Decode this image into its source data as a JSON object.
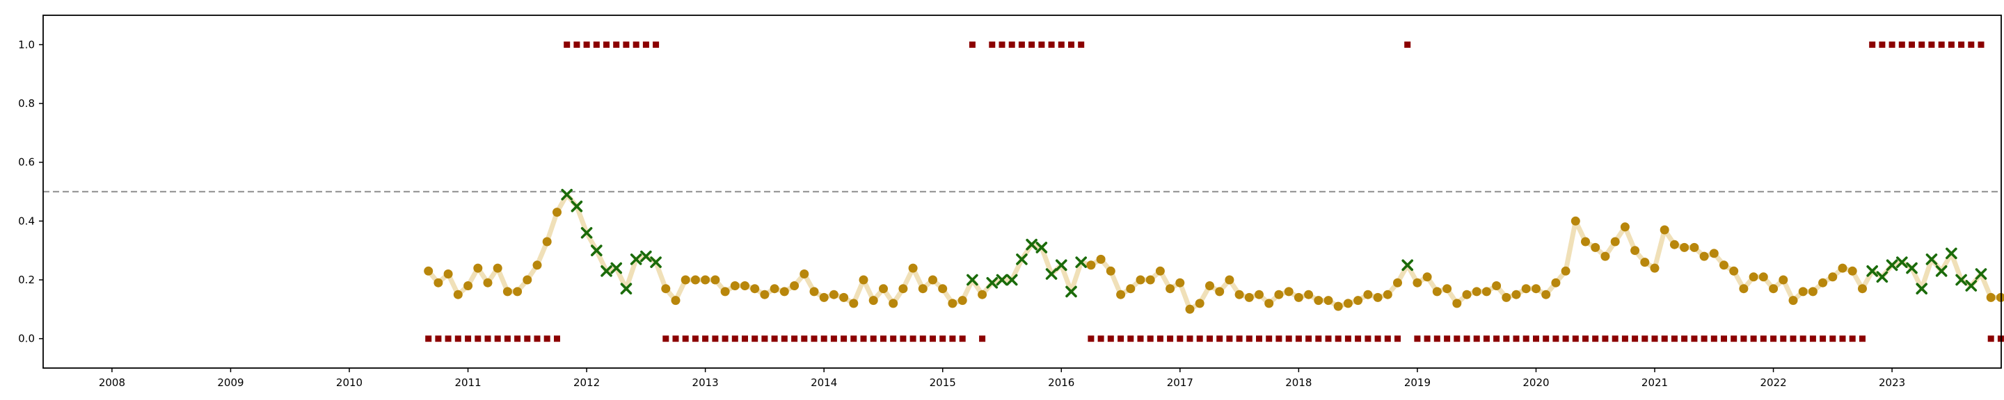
{
  "chart_data": {
    "type": "scatter",
    "title": "",
    "xlabel": "",
    "ylabel": "",
    "xlim": [
      2007.42,
      2023.92
    ],
    "ylim": [
      -0.1,
      1.1
    ],
    "x_ticks": [
      2008,
      2009,
      2010,
      2011,
      2012,
      2013,
      2014,
      2015,
      2016,
      2017,
      2018,
      2019,
      2020,
      2021,
      2022,
      2023
    ],
    "y_ticks": [
      0.0,
      0.2,
      0.4,
      0.6,
      0.8,
      1.0
    ],
    "y_tick_labels": [
      "0.0",
      "0.2",
      "0.4",
      "0.6",
      "0.8",
      "1.0"
    ],
    "threshold": 0.5,
    "grid": false,
    "legend": "none",
    "colors": {
      "score_dot": "#b8860b",
      "score_line": "#f0e0b8",
      "flagged_marker": "#1a6b0a",
      "label_square": "#8b0000",
      "threshold_line": "#999999"
    },
    "start_year": 2010,
    "start_month": 9,
    "scores": [
      0.23,
      0.19,
      0.22,
      0.15,
      0.18,
      0.24,
      0.19,
      0.24,
      0.16,
      0.16,
      0.2,
      0.25,
      0.33,
      0.43,
      0.49,
      0.45,
      0.36,
      0.3,
      0.23,
      0.24,
      0.17,
      0.27,
      0.28,
      0.26,
      0.17,
      0.13,
      0.2,
      0.2,
      0.2,
      0.2,
      0.16,
      0.18,
      0.18,
      0.17,
      0.15,
      0.17,
      0.16,
      0.18,
      0.22,
      0.16,
      0.14,
      0.15,
      0.14,
      0.12,
      0.2,
      0.13,
      0.17,
      0.12,
      0.17,
      0.24,
      0.17,
      0.2,
      0.17,
      0.12,
      0.13,
      0.2,
      0.15,
      0.19,
      0.2,
      0.2,
      0.27,
      0.32,
      0.31,
      0.22,
      0.25,
      0.16,
      0.26,
      0.25,
      0.27,
      0.23,
      0.15,
      0.17,
      0.2,
      0.2,
      0.23,
      0.17,
      0.19,
      0.1,
      0.12,
      0.18,
      0.16,
      0.2,
      0.15,
      0.14,
      0.15,
      0.12,
      0.15,
      0.16,
      0.14,
      0.15,
      0.13,
      0.13,
      0.11,
      0.12,
      0.13,
      0.15,
      0.14,
      0.15,
      0.19,
      0.25,
      0.19,
      0.21,
      0.16,
      0.17,
      0.12,
      0.15,
      0.16,
      0.16,
      0.18,
      0.14,
      0.15,
      0.17,
      0.17,
      0.15,
      0.19,
      0.23,
      0.4,
      0.33,
      0.31,
      0.28,
      0.33,
      0.38,
      0.3,
      0.26,
      0.24,
      0.37,
      0.32,
      0.31,
      0.31,
      0.28,
      0.29,
      0.25,
      0.23,
      0.17,
      0.21,
      0.21,
      0.17,
      0.2,
      0.13,
      0.16,
      0.16,
      0.19,
      0.21,
      0.24,
      0.23,
      0.17,
      0.23,
      0.21,
      0.25,
      0.26,
      0.24,
      0.17,
      0.27,
      0.23,
      0.29,
      0.2,
      0.18,
      0.22,
      0.14,
      0.14
    ],
    "flagged": [
      0,
      0,
      0,
      0,
      0,
      0,
      0,
      0,
      0,
      0,
      0,
      0,
      0,
      0,
      1,
      1,
      1,
      1,
      1,
      1,
      1,
      1,
      1,
      1,
      0,
      0,
      0,
      0,
      0,
      0,
      0,
      0,
      0,
      0,
      0,
      0,
      0,
      0,
      0,
      0,
      0,
      0,
      0,
      0,
      0,
      0,
      0,
      0,
      0,
      0,
      0,
      0,
      0,
      0,
      0,
      1,
      0,
      1,
      1,
      1,
      1,
      1,
      1,
      1,
      1,
      1,
      1,
      0,
      0,
      0,
      0,
      0,
      0,
      0,
      0,
      0,
      0,
      0,
      0,
      0,
      0,
      0,
      0,
      0,
      0,
      0,
      0,
      0,
      0,
      0,
      0,
      0,
      0,
      0,
      0,
      0,
      0,
      0,
      0,
      1,
      0,
      0,
      0,
      0,
      0,
      0,
      0,
      0,
      0,
      0,
      0,
      0,
      0,
      0,
      0,
      0,
      0,
      0,
      0,
      0,
      0,
      0,
      0,
      0,
      0,
      0,
      0,
      0,
      0,
      0,
      0,
      0,
      0,
      0,
      0,
      0,
      0,
      0,
      0,
      0,
      0,
      0,
      0,
      0,
      0,
      0,
      1,
      1,
      1,
      1,
      1,
      1,
      1,
      1,
      1,
      1,
      1,
      1,
      0,
      0
    ],
    "labels": [
      0,
      0,
      0,
      0,
      0,
      0,
      0,
      0,
      0,
      0,
      0,
      0,
      0,
      0,
      1,
      1,
      1,
      1,
      1,
      1,
      1,
      1,
      1,
      1,
      0,
      0,
      0,
      0,
      0,
      0,
      0,
      0,
      0,
      0,
      0,
      0,
      0,
      0,
      0,
      0,
      0,
      0,
      0,
      0,
      0,
      0,
      0,
      0,
      0,
      0,
      0,
      0,
      0,
      0,
      0,
      1,
      0,
      1,
      1,
      1,
      1,
      1,
      1,
      1,
      1,
      1,
      1,
      0,
      0,
      0,
      0,
      0,
      0,
      0,
      0,
      0,
      0,
      0,
      0,
      0,
      0,
      0,
      0,
      0,
      0,
      0,
      0,
      0,
      0,
      0,
      0,
      0,
      0,
      0,
      0,
      0,
      0,
      0,
      0,
      1,
      0,
      0,
      0,
      0,
      0,
      0,
      0,
      0,
      0,
      0,
      0,
      0,
      0,
      0,
      0,
      0,
      0,
      0,
      0,
      0,
      0,
      0,
      0,
      0,
      0,
      0,
      0,
      0,
      0,
      0,
      0,
      0,
      0,
      0,
      0,
      0,
      0,
      0,
      0,
      0,
      0,
      0,
      0,
      0,
      0,
      0,
      1,
      1,
      1,
      1,
      1,
      1,
      1,
      1,
      1,
      1,
      1,
      1,
      0,
      0
    ]
  }
}
